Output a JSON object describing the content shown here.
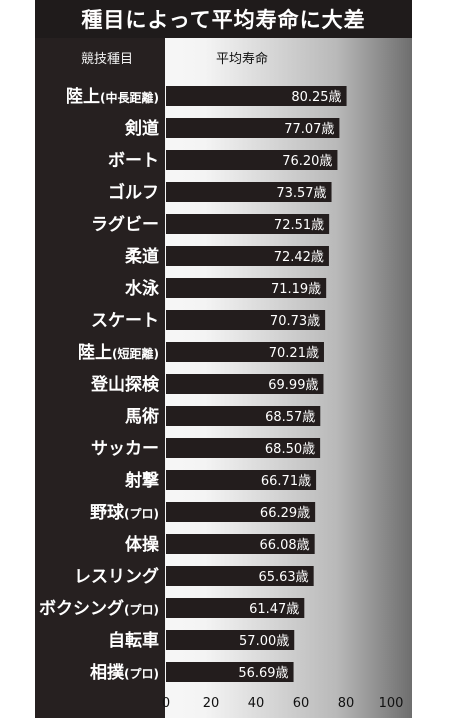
{
  "title": "種目によって平均寿命に大差",
  "header": {
    "sport_col": "競技種目",
    "value_col": "平均寿命"
  },
  "colors": {
    "bar": "#231d1d",
    "panel": "#262020",
    "title_bg": "#1f1b1b",
    "label_text": "#ffffff",
    "value_text": "#ffffff"
  },
  "chart_data": {
    "type": "bar",
    "orientation": "horizontal",
    "title": "種目によって平均寿命に大差",
    "category_header": "競技種目",
    "value_header": "平均寿命",
    "unit_suffix": "歳",
    "xlim": [
      0,
      100
    ],
    "x_ticks": [
      0,
      20,
      40,
      60,
      80,
      100
    ],
    "grid": false,
    "categories": [
      "陸上(中長距離)",
      "剣道",
      "ボート",
      "ゴルフ",
      "ラグビー",
      "柔道",
      "水泳",
      "スケート",
      "陸上(短距離)",
      "登山探検",
      "馬術",
      "サッカー",
      "射撃",
      "野球(プロ)",
      "体操",
      "レスリング",
      "ボクシング(プロ)",
      "自転車",
      "相撲(プロ)"
    ],
    "values": [
      80.25,
      77.07,
      76.2,
      73.57,
      72.51,
      72.42,
      71.19,
      70.73,
      70.21,
      69.99,
      68.57,
      68.5,
      66.71,
      66.29,
      66.08,
      65.63,
      61.47,
      57.0,
      56.69
    ],
    "value_labels": [
      "80.25歳",
      "77.07歳",
      "76.20歳",
      "73.57歳",
      "72.51歳",
      "72.42歳",
      "71.19歳",
      "70.73歳",
      "70.21歳",
      "69.99歳",
      "68.57歳",
      "68.50歳",
      "66.71歳",
      "66.29歳",
      "66.08歳",
      "65.63歳",
      "61.47歳",
      "57.00歳",
      "56.69歳"
    ]
  }
}
